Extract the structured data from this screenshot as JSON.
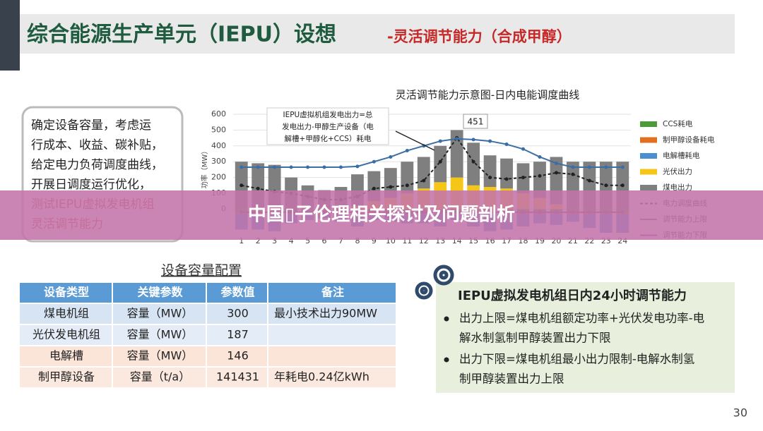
{
  "slide": {
    "title": "综合能源生产单元（IEPU）设想",
    "subtitle": "-灵活调节能力（合成甲醇）",
    "callout": [
      "确定设备容量，考虑运",
      "行成本、收益、碳补贴，",
      "给定电力负荷调度曲线，",
      "开展日调度运行优化，"
    ],
    "callout_red": [
      "测试IEPU虚拟发电机组",
      "灵活调节能力"
    ],
    "page_number": "30"
  },
  "banner": "中国▯子伦理相关探讨及问题剖析",
  "chart_data": {
    "type": "bar",
    "title": "灵活调节能力示意图-日内电能调度曲线",
    "y_label": "功率（MW）",
    "annotation": [
      "IEPU虚拟机组发电出力=总",
      "发电出力-甲醇生产设备（电",
      "解槽+甲醇化+CCS）耗电"
    ],
    "peak_label": "451",
    "categories": [
      "1",
      "2",
      "3",
      "4",
      "5",
      "6",
      "7",
      "8",
      "9",
      "10",
      "11",
      "12",
      "13",
      "14",
      "15",
      "16",
      "17",
      "18",
      "19",
      "20",
      "21",
      "22",
      "23",
      "24"
    ],
    "ylim": [
      -150,
      600
    ],
    "yticks": [
      0,
      100,
      200,
      300,
      400,
      500,
      600
    ],
    "series": [
      {
        "name": "CCS耗电",
        "type": "bar",
        "color": "#4e9a3a",
        "values": [
          -20,
          -20,
          -20,
          -20,
          -20,
          -20,
          -20,
          -20,
          -20,
          -20,
          -20,
          -20,
          -20,
          -20,
          -20,
          -20,
          -20,
          -20,
          -20,
          -20,
          -20,
          -20,
          -20,
          -20
        ]
      },
      {
        "name": "制甲醇设备耗电",
        "type": "bar",
        "color": "#e07020",
        "values": [
          -10,
          -10,
          -10,
          -10,
          -10,
          -10,
          -10,
          -10,
          -10,
          -10,
          -10,
          -10,
          -10,
          -10,
          -10,
          -10,
          -10,
          -10,
          -10,
          -10,
          -10,
          -10,
          -10,
          -10
        ]
      },
      {
        "name": "电解槽耗电",
        "type": "bar",
        "color": "#4a8fd0",
        "values": [
          -100,
          -100,
          -110,
          -60,
          -40,
          -30,
          -50,
          -80,
          -40,
          -50,
          -60,
          -60,
          -80,
          -40,
          -80,
          -110,
          -100,
          -80,
          -60,
          -70,
          -50,
          -90,
          -120,
          -120
        ]
      },
      {
        "name": "光伏出力",
        "type": "bar",
        "color": "#f5c518",
        "values": [
          0,
          0,
          0,
          0,
          0,
          0,
          0,
          20,
          50,
          70,
          100,
          130,
          170,
          200,
          150,
          140,
          130,
          100,
          70,
          30,
          0,
          0,
          0,
          0
        ]
      },
      {
        "name": "煤电出力",
        "type": "bar",
        "color": "#7f7f7f",
        "values": [
          300,
          290,
          280,
          200,
          150,
          120,
          140,
          200,
          190,
          190,
          200,
          200,
          230,
          300,
          270,
          200,
          190,
          190,
          230,
          300,
          300,
          300,
          300,
          300
        ]
      },
      {
        "name": "电力调度曲线",
        "type": "line",
        "color": "#222222",
        "dash": true,
        "values": [
          150,
          130,
          110,
          100,
          80,
          60,
          60,
          80,
          130,
          140,
          150,
          180,
          300,
          451,
          300,
          200,
          190,
          200,
          210,
          230,
          220,
          180,
          150,
          150
        ]
      },
      {
        "name": "调节能力上限",
        "type": "line",
        "color": "#3a6ea5",
        "values": [
          265,
          265,
          265,
          265,
          265,
          265,
          265,
          270,
          300,
          330,
          370,
          400,
          430,
          445,
          440,
          430,
          410,
          380,
          330,
          290,
          265,
          265,
          265,
          265
        ]
      },
      {
        "name": "调节能力下限",
        "type": "line",
        "color": "#7a3a8a",
        "values": [
          -20,
          -20,
          -20,
          -20,
          -20,
          -20,
          -20,
          -20,
          -20,
          -20,
          -20,
          -20,
          -20,
          -20,
          -20,
          -20,
          -20,
          -20,
          -20,
          -20,
          -20,
          -20,
          -20,
          -20
        ]
      }
    ]
  },
  "table": {
    "caption": "设备容量配置",
    "header": [
      "设备类型",
      "关键参数",
      "参数值",
      "备注"
    ],
    "rows": [
      [
        "煤电机组",
        "容量（MW）",
        "300",
        "最小技术出力90MW"
      ],
      [
        "光伏发电机组",
        "容量（MW）",
        "187",
        ""
      ],
      [
        "电解槽",
        "容量（MW）",
        "146",
        ""
      ],
      [
        "制甲醇设备",
        "容量（t/a）",
        "141431",
        "年耗电0.24亿kWh"
      ]
    ]
  },
  "panel": {
    "title": "IEPU虚拟发电机组日内24小时调节能力",
    "bullets": [
      [
        "出力上限=煤电机组额定功率+光伏发电功率-电",
        "解水制氢制甲醇装置出力下限"
      ],
      [
        "出力下限=煤电机组最小出力限制-电解水制氢",
        "制甲醇装置出力上限"
      ]
    ]
  }
}
